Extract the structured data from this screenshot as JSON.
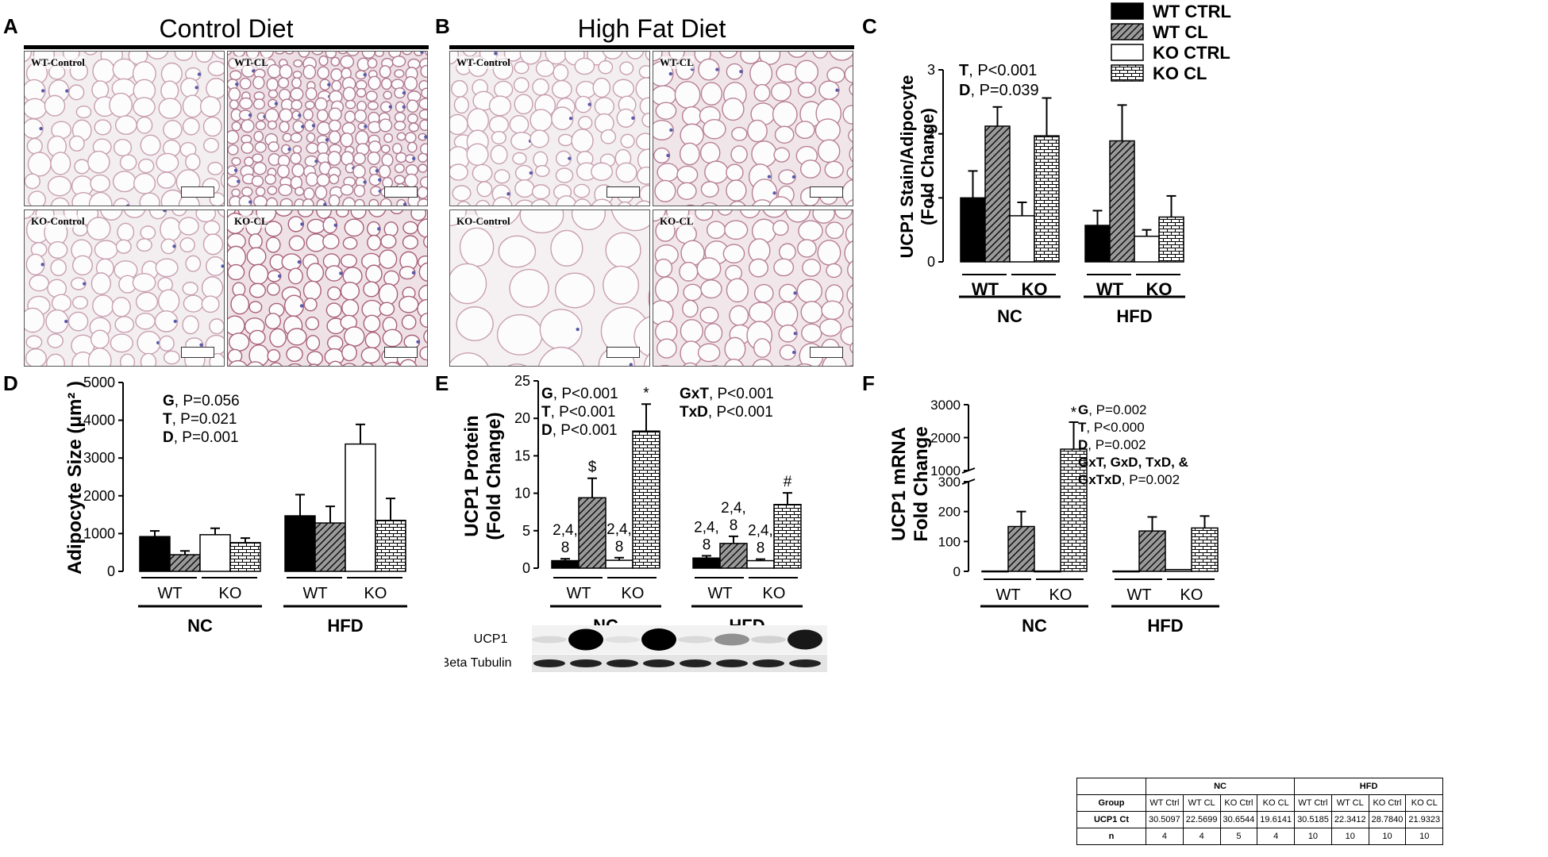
{
  "colors": {
    "wt_ctrl": "#000000",
    "wt_cl": "#555555",
    "ko_ctrl": "#ffffff",
    "ko_cl": "#ffffff"
  },
  "panels": {
    "A": {
      "letter": "A",
      "title": "Control Diet",
      "tiles": [
        "WT-Control",
        "WT-CL",
        "KO-Control",
        "KO-CL"
      ]
    },
    "B": {
      "letter": "B",
      "title": "High Fat Diet",
      "tiles": [
        "WT-Control",
        "WT-CL",
        "KO-Control",
        "KO-CL"
      ]
    },
    "C": {
      "letter": "C"
    },
    "D": {
      "letter": "D"
    },
    "E": {
      "letter": "E"
    },
    "F": {
      "letter": "F"
    }
  },
  "chart_data": [
    {
      "panel": "C",
      "type": "bar",
      "ylabel": [
        "UCP1 Stain/Adipocyte",
        "(Fold Change)"
      ],
      "ylim": [
        0,
        3
      ],
      "yticks": [
        "0",
        "1",
        "2",
        "3"
      ],
      "groups": [
        {
          "label": "NC",
          "subgroups": [
            "WT",
            "KO"
          ]
        },
        {
          "label": "HFD",
          "subgroups": [
            "WT",
            "KO"
          ]
        }
      ],
      "series": [
        {
          "name": "WT CTRL",
          "pattern": "solid",
          "values": [
            1.0,
            0.57
          ],
          "errors": [
            0.42,
            0.23
          ]
        },
        {
          "name": "WT CL",
          "pattern": "hatch",
          "values": [
            2.12,
            1.89
          ],
          "errors": [
            0.3,
            0.56
          ]
        },
        {
          "name": "KO CTRL",
          "pattern": "empty",
          "values": [
            0.72,
            0.4
          ],
          "errors": [
            0.21,
            0.1
          ]
        },
        {
          "name": "KO CL",
          "pattern": "brick",
          "values": [
            1.97,
            0.7
          ],
          "errors": [
            0.59,
            0.33
          ]
        }
      ],
      "stats": [
        {
          "key": "T",
          "text": ", P<0.001"
        },
        {
          "key": "D",
          "text": ", P=0.039"
        }
      ],
      "legend": "top-right"
    },
    {
      "panel": "D",
      "type": "bar",
      "ylabel": "Adipocyte Size (μm² )",
      "ylim": [
        0,
        5000
      ],
      "yticks": [
        "0",
        "1000",
        "2000",
        "3000",
        "4000",
        "5000"
      ],
      "groups": [
        {
          "label": "NC",
          "subgroups": [
            "WT",
            "KO"
          ]
        },
        {
          "label": "HFD",
          "subgroups": [
            "WT",
            "KO"
          ]
        }
      ],
      "series": [
        {
          "name": "WT CTRL",
          "pattern": "solid",
          "values": [
            920,
            1470
          ],
          "errors": [
            150,
            560
          ]
        },
        {
          "name": "WT CL",
          "pattern": "hatch",
          "values": [
            440,
            1280
          ],
          "errors": [
            100,
            440
          ]
        },
        {
          "name": "KO CTRL",
          "pattern": "empty",
          "values": [
            970,
            3370
          ],
          "errors": [
            170,
            520
          ]
        },
        {
          "name": "KO CL",
          "pattern": "brick",
          "values": [
            760,
            1350
          ],
          "errors": [
            120,
            580
          ]
        }
      ],
      "stats": [
        {
          "key": "G",
          "text": ", P=0.056"
        },
        {
          "key": "T",
          "text": ", P=0.021"
        },
        {
          "key": "D",
          "text": ", P=0.001"
        }
      ]
    },
    {
      "panel": "E",
      "type": "bar",
      "ylabel": [
        "UCP1 Protein",
        "(Fold Change)"
      ],
      "ylim": [
        0,
        25
      ],
      "yticks": [
        "0",
        "5",
        "10",
        "15",
        "20",
        "25"
      ],
      "groups": [
        {
          "label": "NC",
          "subgroups": [
            "WT",
            "KO"
          ]
        },
        {
          "label": "HFD",
          "subgroups": [
            "WT",
            "KO"
          ]
        }
      ],
      "series": [
        {
          "name": "WT CTRL",
          "pattern": "solid",
          "values": [
            1.0,
            1.35
          ],
          "errors": [
            0.25,
            0.3
          ]
        },
        {
          "name": "WT CL",
          "pattern": "hatch",
          "values": [
            9.4,
            3.3
          ],
          "errors": [
            2.6,
            0.95
          ]
        },
        {
          "name": "KO CTRL",
          "pattern": "empty",
          "values": [
            1.05,
            1.0
          ],
          "errors": [
            0.35,
            0.2
          ]
        },
        {
          "name": "KO CL",
          "pattern": "brick",
          "values": [
            18.3,
            8.5
          ],
          "errors": [
            3.6,
            1.55
          ]
        }
      ],
      "bar_annotations": [
        {
          "group": 0,
          "series": 0,
          "text": [
            "2,4,",
            "8"
          ]
        },
        {
          "group": 0,
          "series": 1,
          "text": [
            "$"
          ]
        },
        {
          "group": 0,
          "series": 2,
          "text": [
            "2,4,",
            "8"
          ]
        },
        {
          "group": 0,
          "series": 3,
          "text": [
            "*"
          ]
        },
        {
          "group": 1,
          "series": 0,
          "text": [
            "2,4,",
            "8"
          ]
        },
        {
          "group": 1,
          "series": 1,
          "text": [
            "2,4,",
            "8"
          ]
        },
        {
          "group": 1,
          "series": 2,
          "text": [
            "2,4,",
            "8"
          ]
        },
        {
          "group": 1,
          "series": 3,
          "text": [
            "#"
          ]
        }
      ],
      "stats": [
        {
          "key": "G",
          "text": ", P<0.001"
        },
        {
          "key": "T",
          "text": ", P<0.001"
        },
        {
          "key": "D",
          "text": ", P<0.001"
        }
      ],
      "stats2": [
        {
          "key": "GxT",
          "text": ", P<0.001"
        },
        {
          "key": "TxD",
          "text": ", P<0.001"
        }
      ],
      "blot": {
        "rows": [
          "UCP1",
          "Beta Tubulin"
        ],
        "ucp1_intensity": [
          0.05,
          0.95,
          0.02,
          1.0,
          0.05,
          0.35,
          0.08,
          0.85
        ]
      }
    },
    {
      "panel": "F",
      "type": "bar",
      "ylabel": [
        "UCP1 mRNA",
        "Fold  Change"
      ],
      "yticks_lower": [
        "0",
        "100",
        "200",
        "300"
      ],
      "yticks_upper": [
        "1000",
        "2000",
        "3000"
      ],
      "axis_break": {
        "lower_range": [
          0,
          300
        ],
        "upper_range": [
          1000,
          3000
        ]
      },
      "groups": [
        {
          "label": "NC",
          "subgroups": [
            "WT",
            "KO"
          ]
        },
        {
          "label": "HFD",
          "subgroups": [
            "WT",
            "KO"
          ]
        }
      ],
      "series": [
        {
          "name": "WT CTRL",
          "pattern": "solid",
          "values": [
            1,
            1
          ],
          "errors": [
            0,
            0
          ]
        },
        {
          "name": "WT CL",
          "pattern": "hatch",
          "values": [
            150,
            135
          ],
          "errors": [
            50,
            47
          ]
        },
        {
          "name": "KO CTRL",
          "pattern": "empty",
          "values": [
            1,
            6
          ],
          "errors": [
            0,
            0
          ]
        },
        {
          "name": "KO CL",
          "pattern": "brick",
          "values": [
            1650,
            145
          ],
          "errors": [
            820,
            40
          ]
        }
      ],
      "bar_annotations": [
        {
          "group": 0,
          "series": 3,
          "text": [
            "*"
          ]
        }
      ],
      "stats": [
        {
          "key": "G",
          "text": ", P=0.002"
        },
        {
          "key": "T",
          "text": ", P<0.000"
        },
        {
          "key": "D",
          "text": ", P=0.002"
        },
        {
          "key": "GxT, GxD, TxD, &",
          "text": ""
        },
        {
          "key": "GxTxD",
          "text": ", P=0.002"
        }
      ],
      "table": {
        "groups": [
          "NC",
          "HFD"
        ],
        "header": [
          "Group",
          "WT Ctrl",
          "WT CL",
          "KO Ctrl",
          "KO CL",
          "WT Ctrl",
          "WT CL",
          "KO Ctrl",
          "KO CL"
        ],
        "rows": [
          [
            "UCP1 Ct",
            "30.5097",
            "22.5699",
            "30.6544",
            "19.6141",
            "30.5185",
            "22.3412",
            "28.7840",
            "21.9323"
          ],
          [
            "n",
            "4",
            "4",
            "5",
            "4",
            "10",
            "10",
            "10",
            "10"
          ]
        ]
      }
    }
  ]
}
